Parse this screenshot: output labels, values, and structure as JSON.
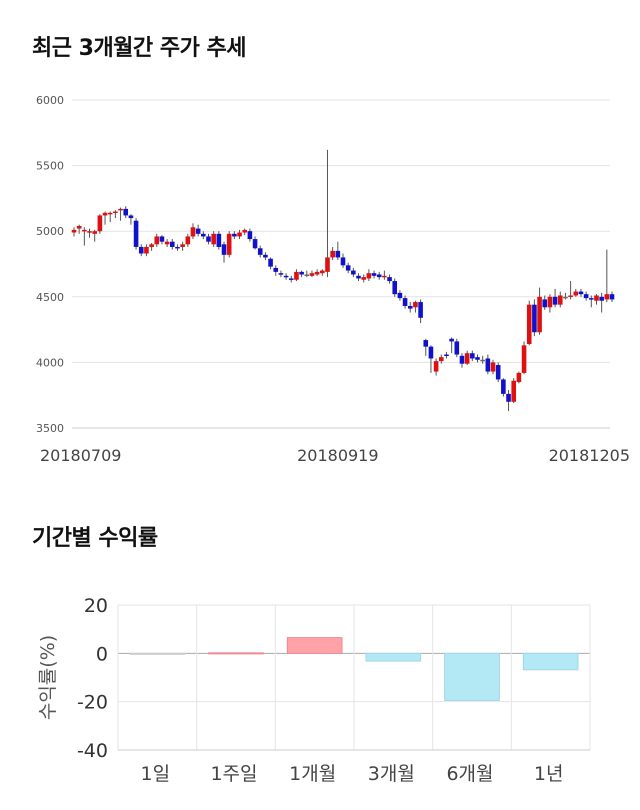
{
  "sections": {
    "price_title": "최근 3개월간 주가 추세",
    "returns_title": "기간별 수익률"
  },
  "chart_data": [
    {
      "type": "candlestick",
      "title": "최근 3개월간 주가 추세",
      "ylim": [
        3500,
        6000
      ],
      "yticks": [
        3500,
        4000,
        4500,
        5000,
        5500,
        6000
      ],
      "xtick_labels": [
        {
          "index": 0,
          "label": "20180709"
        },
        {
          "index": 51,
          "label": "20180919"
        },
        {
          "index": 104,
          "label": "20181205"
        }
      ],
      "grid": true,
      "colors": {
        "up": "#dd1111",
        "down": "#1111cc",
        "wick": "#555555",
        "flat": "#666666"
      },
      "candles": [
        [
          4990,
          5010,
          4960,
          5030
        ],
        [
          5020,
          5040,
          4980,
          5050
        ],
        [
          5000,
          5010,
          4890,
          5030
        ],
        [
          4990,
          5000,
          4950,
          5020
        ],
        [
          4980,
          5000,
          4920,
          5010
        ],
        [
          5000,
          5120,
          4980,
          5130
        ],
        [
          5120,
          5140,
          5050,
          5150
        ],
        [
          5130,
          5140,
          5070,
          5150
        ],
        [
          5140,
          5150,
          5100,
          5160
        ],
        [
          5160,
          5170,
          5080,
          5180
        ],
        [
          5170,
          5120,
          5100,
          5190
        ],
        [
          5120,
          5100,
          5050,
          5130
        ],
        [
          5080,
          4880,
          4860,
          5100
        ],
        [
          4880,
          4830,
          4810,
          4900
        ],
        [
          4830,
          4880,
          4810,
          4900
        ],
        [
          4880,
          4900,
          4850,
          4910
        ],
        [
          4900,
          4960,
          4880,
          4980
        ],
        [
          4960,
          4920,
          4900,
          4970
        ],
        [
          4900,
          4920,
          4880,
          4940
        ],
        [
          4920,
          4880,
          4860,
          4940
        ],
        [
          4880,
          4870,
          4850,
          4900
        ],
        [
          4880,
          4900,
          4850,
          4920
        ],
        [
          4900,
          4960,
          4880,
          4980
        ],
        [
          4960,
          5030,
          4940,
          5060
        ],
        [
          5020,
          4980,
          4960,
          5050
        ],
        [
          4980,
          4960,
          4940,
          5000
        ],
        [
          4960,
          4920,
          4900,
          4980
        ],
        [
          4900,
          4980,
          4880,
          5000
        ],
        [
          4980,
          4880,
          4860,
          5000
        ],
        [
          4900,
          4820,
          4760,
          4920
        ],
        [
          4820,
          4980,
          4800,
          5000
        ],
        [
          4980,
          4960,
          4940,
          5000
        ],
        [
          4960,
          4990,
          4940,
          5010
        ],
        [
          4990,
          5010,
          4970,
          5020
        ],
        [
          5000,
          4940,
          4920,
          5020
        ],
        [
          4940,
          4870,
          4860,
          4960
        ],
        [
          4870,
          4820,
          4800,
          4890
        ],
        [
          4820,
          4800,
          4780,
          4840
        ],
        [
          4790,
          4730,
          4710,
          4800
        ],
        [
          4720,
          4690,
          4660,
          4740
        ],
        [
          4680,
          4670,
          4650,
          4700
        ],
        [
          4660,
          4650,
          4630,
          4680
        ],
        [
          4640,
          4630,
          4610,
          4660
        ],
        [
          4630,
          4690,
          4620,
          4710
        ],
        [
          4690,
          4670,
          4650,
          4700
        ],
        [
          4670,
          4670,
          4650,
          4700
        ],
        [
          4660,
          4680,
          4650,
          4700
        ],
        [
          4670,
          4690,
          4660,
          4710
        ],
        [
          4680,
          4700,
          4660,
          4710
        ],
        [
          4690,
          4800,
          4650,
          5620
        ],
        [
          4800,
          4850,
          4780,
          4880
        ],
        [
          4850,
          4800,
          4780,
          4920
        ],
        [
          4800,
          4740,
          4720,
          4830
        ],
        [
          4740,
          4700,
          4680,
          4760
        ],
        [
          4700,
          4670,
          4650,
          4720
        ],
        [
          4660,
          4640,
          4620,
          4680
        ],
        [
          4630,
          4650,
          4610,
          4670
        ],
        [
          4640,
          4680,
          4620,
          4710
        ],
        [
          4680,
          4660,
          4640,
          4700
        ],
        [
          4670,
          4650,
          4630,
          4690
        ],
        [
          4650,
          4660,
          4630,
          4700
        ],
        [
          4650,
          4620,
          4600,
          4670
        ],
        [
          4620,
          4520,
          4500,
          4640
        ],
        [
          4530,
          4490,
          4470,
          4550
        ],
        [
          4490,
          4430,
          4410,
          4510
        ],
        [
          4430,
          4410,
          4380,
          4460
        ],
        [
          4420,
          4460,
          4380,
          4470
        ],
        [
          4460,
          4340,
          4300,
          4480
        ],
        [
          4170,
          4120,
          4050,
          4180
        ],
        [
          4120,
          4030,
          3920,
          4130
        ],
        [
          3930,
          4010,
          3900,
          4030
        ],
        [
          4010,
          4040,
          3990,
          4060
        ],
        [
          4060,
          4050,
          4030,
          4080
        ],
        [
          4180,
          4160,
          4070,
          4190
        ],
        [
          4160,
          4060,
          4040,
          4180
        ],
        [
          4050,
          3990,
          3960,
          4070
        ],
        [
          3990,
          4070,
          3980,
          4090
        ],
        [
          4070,
          4030,
          4010,
          4090
        ],
        [
          4040,
          4020,
          4000,
          4060
        ],
        [
          4020,
          4020,
          3990,
          4050
        ],
        [
          4030,
          3930,
          3910,
          4060
        ],
        [
          3930,
          4000,
          3910,
          4020
        ],
        [
          3980,
          3870,
          3850,
          4000
        ],
        [
          3870,
          3760,
          3740,
          3880
        ],
        [
          3760,
          3700,
          3630,
          3790
        ],
        [
          3700,
          3860,
          3690,
          3880
        ],
        [
          3850,
          3920,
          3840,
          3930
        ],
        [
          3920,
          4130,
          3910,
          4160
        ],
        [
          4140,
          4440,
          4130,
          4470
        ],
        [
          4440,
          4230,
          4200,
          4480
        ],
        [
          4230,
          4500,
          4210,
          4570
        ],
        [
          4480,
          4420,
          4400,
          4510
        ],
        [
          4420,
          4500,
          4380,
          4520
        ],
        [
          4500,
          4440,
          4420,
          4560
        ],
        [
          4440,
          4510,
          4420,
          4540
        ],
        [
          4500,
          4500,
          4480,
          4530
        ],
        [
          4500,
          4510,
          4480,
          4620
        ],
        [
          4510,
          4540,
          4500,
          4560
        ],
        [
          4540,
          4520,
          4500,
          4560
        ],
        [
          4520,
          4490,
          4470,
          4540
        ],
        [
          4490,
          4480,
          4420,
          4510
        ],
        [
          4470,
          4510,
          4440,
          4520
        ],
        [
          4500,
          4470,
          4380,
          4530
        ],
        [
          4480,
          4520,
          4460,
          4860
        ],
        [
          4520,
          4480,
          4460,
          4540
        ]
      ]
    },
    {
      "type": "bar",
      "title": "기간별 수익률",
      "ylabel": "수익률(%)",
      "categories": [
        "1일",
        "1주일",
        "1개월",
        "3개월",
        "6개월",
        "1년"
      ],
      "values": [
        0,
        0.2,
        6.5,
        -3.2,
        -19.5,
        -6.8
      ],
      "ylim": [
        -40,
        20
      ],
      "yticks": [
        -40,
        -20,
        0,
        20
      ],
      "grid": true,
      "colors": {
        "positive": "#ffa3a8",
        "negative": "#b2e9f4",
        "zero": "#cccccc"
      }
    }
  ]
}
